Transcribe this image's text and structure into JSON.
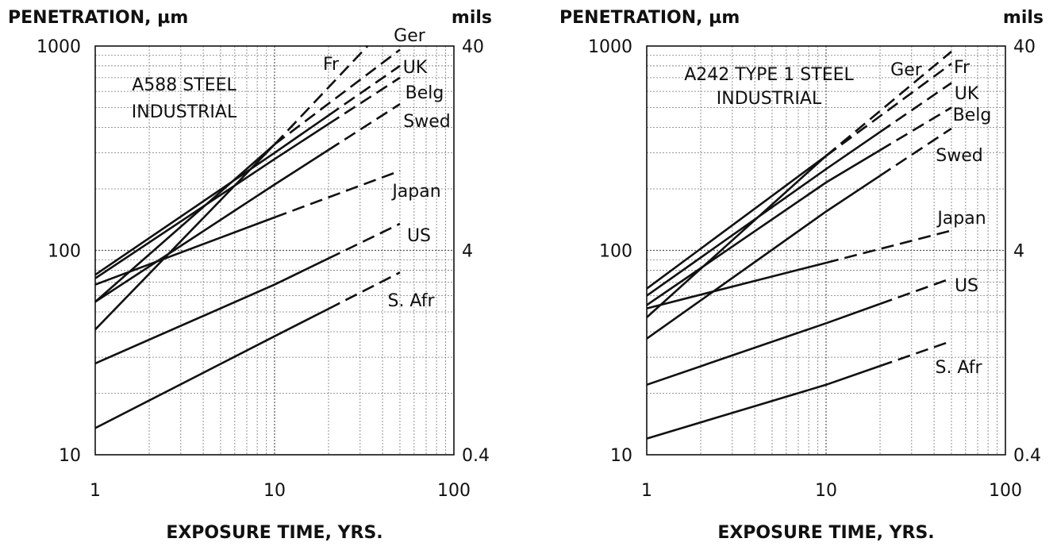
{
  "chart_data": [
    {
      "type": "line",
      "scale": "log-log",
      "ylabel": "PENETRATION, µm",
      "y2label": "mils",
      "xlabel": "EXPOSURE TIME, YRS.",
      "xlim": [
        1,
        100
      ],
      "ylim": [
        10,
        1000
      ],
      "x_ticks": [
        "1",
        "10",
        "100"
      ],
      "y_ticks": [
        "10",
        "100",
        "1000"
      ],
      "y2_ticks": [
        "0.4",
        "4",
        "40"
      ],
      "annotation": [
        "A588 STEEL",
        "INDUSTRIAL"
      ],
      "grid": true,
      "series": [
        {
          "name": "Ger",
          "x": [
            1,
            10,
            50
          ],
          "values": [
            56,
            330,
            960
          ],
          "solid_until": 10
        },
        {
          "name": "Fr",
          "x": [
            1,
            10,
            33
          ],
          "values": [
            41,
            330,
            1000
          ],
          "solid_until": 10
        },
        {
          "name": "UK",
          "x": [
            1,
            10,
            50
          ],
          "values": [
            76,
            300,
            800
          ],
          "solid_until": 20
        },
        {
          "name": "Belg",
          "x": [
            1,
            10,
            50
          ],
          "values": [
            73,
            280,
            700
          ],
          "solid_until": 20
        },
        {
          "name": "Swed",
          "x": [
            1,
            10,
            50
          ],
          "values": [
            56,
            210,
            520
          ],
          "solid_until": 20
        },
        {
          "name": "Japan",
          "x": [
            1,
            10,
            50
          ],
          "values": [
            68,
            145,
            245
          ],
          "solid_until": 10
        },
        {
          "name": "US",
          "x": [
            1,
            10,
            50
          ],
          "values": [
            28,
            68,
            135
          ],
          "solid_until": 20
        },
        {
          "name": "S. Afr",
          "x": [
            1,
            10,
            50
          ],
          "values": [
            13.5,
            38,
            78
          ],
          "solid_until": 20
        }
      ]
    },
    {
      "type": "line",
      "scale": "log-log",
      "ylabel": "PENETRATION, µm",
      "y2label": "mils",
      "xlabel": "EXPOSURE TIME, YRS.",
      "xlim": [
        1,
        100
      ],
      "ylim": [
        10,
        1000
      ],
      "x_ticks": [
        "1",
        "10",
        "100"
      ],
      "y_ticks": [
        "10",
        "100",
        "1000"
      ],
      "y2_ticks": [
        "0.4",
        "4",
        "40"
      ],
      "annotation": [
        "A242 TYPE 1 STEEL",
        "INDUSTRIAL"
      ],
      "grid": true,
      "series": [
        {
          "name": "Ger",
          "x": [
            1,
            10,
            50
          ],
          "values": [
            47,
            290,
            940
          ],
          "solid_until": 10
        },
        {
          "name": "Fr",
          "x": [
            1,
            10,
            50
          ],
          "values": [
            65,
            290,
            820
          ],
          "solid_until": 10
        },
        {
          "name": "UK",
          "x": [
            1,
            10,
            50
          ],
          "values": [
            60,
            250,
            660
          ],
          "solid_until": 20
        },
        {
          "name": "Belg",
          "x": [
            1,
            10,
            50
          ],
          "values": [
            54,
            215,
            500
          ],
          "solid_until": 20
        },
        {
          "name": "Swed",
          "x": [
            1,
            10,
            50
          ],
          "values": [
            37,
            155,
            395
          ],
          "solid_until": 20
        },
        {
          "name": "Japan",
          "x": [
            1,
            10,
            50
          ],
          "values": [
            52,
            87,
            125
          ],
          "solid_until": 10
        },
        {
          "name": "US",
          "x": [
            1,
            10,
            50
          ],
          "values": [
            22,
            44,
            73
          ],
          "solid_until": 20
        },
        {
          "name": "S. Afr",
          "x": [
            1,
            10,
            50
          ],
          "values": [
            12,
            22,
            36
          ],
          "solid_until": 20
        }
      ]
    }
  ]
}
